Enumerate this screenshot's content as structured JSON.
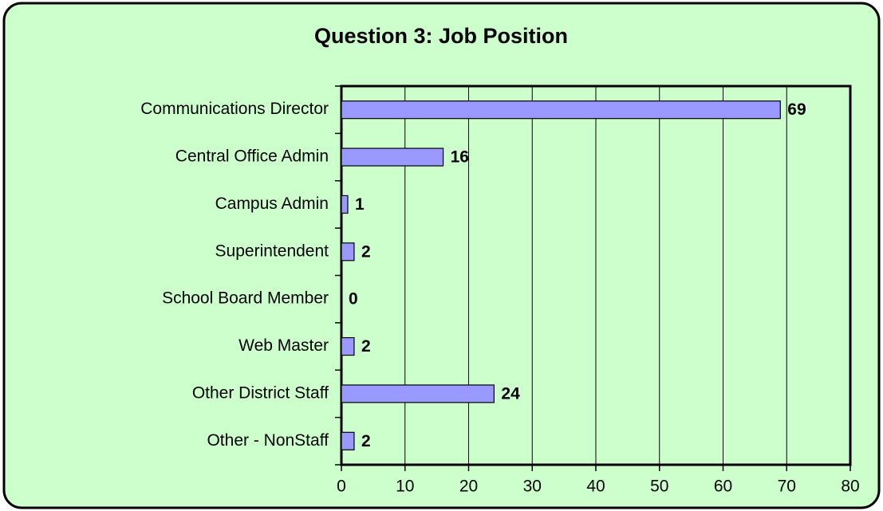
{
  "chart_data": {
    "type": "bar",
    "orientation": "horizontal",
    "title": "Question 3: Job Position",
    "categories": [
      "Communications Director",
      "Central Office Admin",
      "Campus Admin",
      "Superintendent",
      "School Board Member",
      "Web Master",
      "Other District Staff",
      "Other - NonStaff"
    ],
    "values": [
      69,
      16,
      1,
      2,
      0,
      2,
      24,
      2
    ],
    "color": "#9999ff",
    "xlim": [
      0,
      80
    ],
    "xticks": [
      0,
      10,
      20,
      30,
      40,
      50,
      60,
      70,
      80
    ],
    "grid": true
  }
}
